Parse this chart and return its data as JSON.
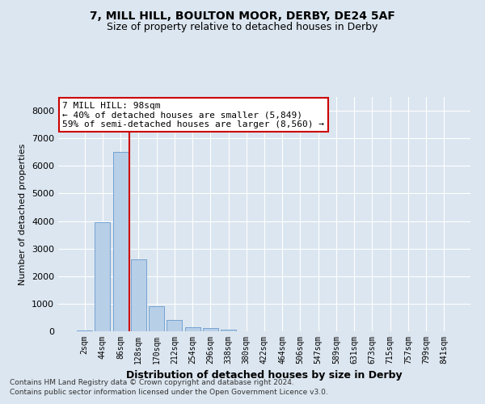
{
  "title1": "7, MILL HILL, BOULTON MOOR, DERBY, DE24 5AF",
  "title2": "Size of property relative to detached houses in Derby",
  "xlabel": "Distribution of detached houses by size in Derby",
  "ylabel": "Number of detached properties",
  "categories": [
    "2sqm",
    "44sqm",
    "86sqm",
    "128sqm",
    "170sqm",
    "212sqm",
    "254sqm",
    "296sqm",
    "338sqm",
    "380sqm",
    "422sqm",
    "464sqm",
    "506sqm",
    "547sqm",
    "589sqm",
    "631sqm",
    "673sqm",
    "715sqm",
    "757sqm",
    "799sqm",
    "841sqm"
  ],
  "bar_values": [
    30,
    3950,
    6500,
    2600,
    900,
    400,
    150,
    110,
    70,
    0,
    0,
    0,
    0,
    0,
    0,
    0,
    0,
    0,
    0,
    0,
    0
  ],
  "bar_color": "#b8cfe8",
  "bar_edge_color": "#6699cc",
  "vline_color": "#cc0000",
  "vline_x": 2.5,
  "annotation_text": "7 MILL HILL: 98sqm\n← 40% of detached houses are smaller (5,849)\n59% of semi-detached houses are larger (8,560) →",
  "annotation_box_color": "#ffffff",
  "annotation_box_edge": "#cc0000",
  "ylim": [
    0,
    8500
  ],
  "yticks": [
    0,
    1000,
    2000,
    3000,
    4000,
    5000,
    6000,
    7000,
    8000
  ],
  "footnote1": "Contains HM Land Registry data © Crown copyright and database right 2024.",
  "footnote2": "Contains public sector information licensed under the Open Government Licence v3.0.",
  "bg_color": "#dce6f0"
}
